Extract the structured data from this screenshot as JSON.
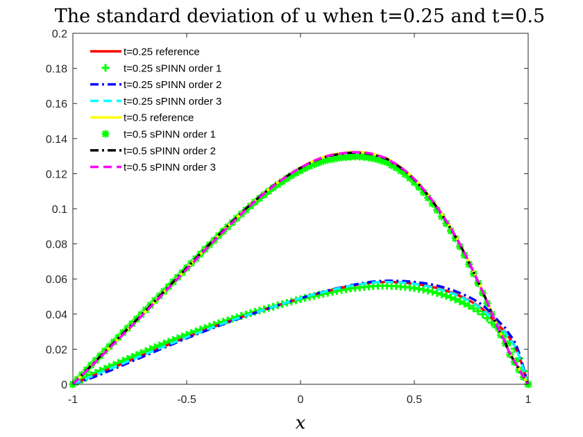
{
  "chart_data": {
    "type": "line",
    "title": "The standard deviation of u when t=0.25 and t=0.5",
    "xlabel": "x",
    "ylabel": "",
    "xlim": [
      -1,
      1
    ],
    "ylim": [
      0,
      0.2
    ],
    "xticks": [
      -1,
      -0.5,
      0,
      0.5,
      1
    ],
    "xtick_labels": [
      "-1",
      "-0.5",
      "0",
      "0.5",
      "1"
    ],
    "yticks": [
      0,
      0.02,
      0.04,
      0.06,
      0.08,
      0.1,
      0.12,
      0.14,
      0.16,
      0.18,
      0.2
    ],
    "ytick_labels": [
      "0",
      "0.02",
      "0.04",
      "0.06",
      "0.08",
      "0.1",
      "0.12",
      "0.14",
      "0.16",
      "0.18",
      "0.2"
    ],
    "legend_position": "top-left",
    "x": [
      -1,
      -0.9,
      -0.8,
      -0.7,
      -0.6,
      -0.5,
      -0.4,
      -0.3,
      -0.2,
      -0.1,
      0,
      0.1,
      0.2,
      0.25,
      0.3,
      0.35,
      0.4,
      0.5,
      0.6,
      0.7,
      0.8,
      0.9,
      0.95,
      1
    ],
    "series": [
      {
        "name": "t=0.25 reference",
        "color": "#ff0000",
        "style": "solid",
        "marker": "none",
        "values": [
          0,
          0.0055,
          0.0108,
          0.0162,
          0.0215,
          0.0268,
          0.0318,
          0.0365,
          0.0408,
          0.045,
          0.049,
          0.0525,
          0.0555,
          0.0567,
          0.0577,
          0.0582,
          0.0583,
          0.0573,
          0.0548,
          0.0503,
          0.0428,
          0.0298,
          0.0195,
          0
        ]
      },
      {
        "name": "t=0.25 sPINN order 1",
        "color": "#00ff00",
        "style": "none",
        "marker": "plus",
        "values": [
          0,
          0.0065,
          0.0122,
          0.0178,
          0.0232,
          0.0282,
          0.033,
          0.0373,
          0.0413,
          0.045,
          0.0485,
          0.0515,
          0.0541,
          0.055,
          0.0557,
          0.0561,
          0.056,
          0.0548,
          0.052,
          0.0472,
          0.0398,
          0.0275,
          0.0178,
          0
        ]
      },
      {
        "name": "t=0.25 sPINN order 2",
        "color": "#0000ff",
        "style": "dashdot",
        "marker": "none",
        "values": [
          0,
          0.0045,
          0.0098,
          0.0153,
          0.0208,
          0.0262,
          0.0313,
          0.0361,
          0.0406,
          0.0449,
          0.049,
          0.0527,
          0.0558,
          0.0571,
          0.0582,
          0.0588,
          0.059,
          0.0583,
          0.0562,
          0.052,
          0.045,
          0.032,
          0.0215,
          0
        ]
      },
      {
        "name": "t=0.25 sPINN order 3",
        "color": "#00ffff",
        "style": "dashed",
        "marker": "none",
        "values": [
          0,
          0.0055,
          0.0108,
          0.0162,
          0.0215,
          0.0268,
          0.0318,
          0.0365,
          0.0408,
          0.045,
          0.049,
          0.0525,
          0.0555,
          0.0567,
          0.0577,
          0.0582,
          0.0582,
          0.0572,
          0.0545,
          0.05,
          0.0425,
          0.0295,
          0.0192,
          0
        ]
      },
      {
        "name": "t=0.5 reference",
        "color": "#ffff00",
        "style": "solid",
        "marker": "none",
        "values": [
          0,
          0.013,
          0.026,
          0.039,
          0.0525,
          0.066,
          0.0795,
          0.0925,
          0.1045,
          0.115,
          0.1235,
          0.1295,
          0.132,
          0.1323,
          0.1318,
          0.13,
          0.127,
          0.117,
          0.101,
          0.08,
          0.053,
          0.024,
          0.011,
          0
        ]
      },
      {
        "name": "t=0.5 sPINN order 1",
        "color": "#00ff00",
        "style": "none",
        "marker": "asterisk",
        "values": [
          0,
          0.0136,
          0.0268,
          0.0398,
          0.053,
          0.0663,
          0.0795,
          0.0922,
          0.1038,
          0.1138,
          0.1218,
          0.1272,
          0.1294,
          0.1297,
          0.1292,
          0.1276,
          0.1248,
          0.115,
          0.0993,
          0.0785,
          0.052,
          0.0233,
          0.0105,
          0
        ]
      },
      {
        "name": "t=0.5 sPINN order 2",
        "color": "#000000",
        "style": "dashdot",
        "marker": "none",
        "values": [
          0,
          0.0132,
          0.0263,
          0.0393,
          0.0528,
          0.0663,
          0.0797,
          0.0927,
          0.1046,
          0.115,
          0.1233,
          0.1292,
          0.1316,
          0.1319,
          0.1314,
          0.1296,
          0.1266,
          0.1166,
          0.1006,
          0.0796,
          0.0527,
          0.0238,
          0.0108,
          0
        ]
      },
      {
        "name": "t=0.5 sPINN order 3",
        "color": "#ff00ff",
        "style": "dashed",
        "marker": "none",
        "values": [
          0,
          0.0128,
          0.0257,
          0.0387,
          0.0521,
          0.0656,
          0.0791,
          0.0921,
          0.1042,
          0.1148,
          0.1234,
          0.1294,
          0.1319,
          0.1322,
          0.1317,
          0.1299,
          0.1269,
          0.1169,
          0.1009,
          0.0799,
          0.0529,
          0.0239,
          0.0109,
          0
        ]
      }
    ]
  }
}
